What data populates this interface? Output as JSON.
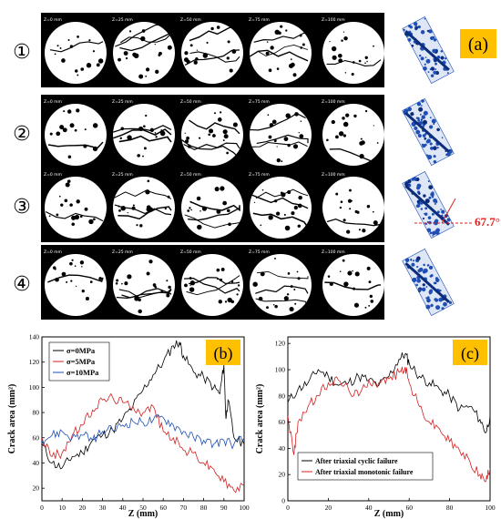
{
  "panel_a": {
    "badge": "(a)",
    "angle_label": "67.7°",
    "rows": [
      {
        "label": "①",
        "slices": [
          "Z=0 mm",
          "Z=25 mm",
          "Z=50 mm",
          "Z=75 mm",
          "Z=100 mm"
        ]
      },
      {
        "label": "②",
        "slices": [
          "Z=0 mm",
          "Z=25 mm",
          "Z=50 mm",
          "Z=75 mm",
          "Z=100 mm"
        ]
      },
      {
        "label": "③",
        "slices": [
          "Z=0 mm",
          "Z=25 mm",
          "Z=50 mm",
          "Z=75 mm",
          "Z=100 mm"
        ]
      },
      {
        "label": "④",
        "slices": [
          "Z=0 mm",
          "Z=25 mm",
          "Z=50 mm",
          "Z=75 mm",
          "Z=100 mm"
        ]
      }
    ]
  },
  "colors": {
    "badge": "#ffc000",
    "angle": "#e02020",
    "blue": "#1f4fb5",
    "black": "#000000",
    "red": "#d42020"
  },
  "chart_data": [
    {
      "type": "line",
      "badge": "(b)",
      "xlabel": "Z (mm)",
      "ylabel": "Crack area (mm²)",
      "xlim": [
        0,
        100
      ],
      "ylim": [
        10,
        140
      ],
      "xticks": [
        0,
        10,
        20,
        30,
        40,
        50,
        60,
        70,
        80,
        90,
        100
      ],
      "yticks": [
        20,
        40,
        60,
        80,
        100,
        120,
        140
      ],
      "legend_position": "top-left",
      "series": [
        {
          "name": "σ=0MPa",
          "color": "#000000",
          "x": [
            0,
            5,
            10,
            15,
            20,
            25,
            30,
            35,
            40,
            45,
            50,
            55,
            60,
            65,
            68,
            70,
            75,
            80,
            85,
            88,
            90,
            91,
            92,
            95,
            100
          ],
          "y": [
            55,
            40,
            36,
            45,
            48,
            58,
            62,
            66,
            75,
            85,
            98,
            110,
            120,
            133,
            136,
            125,
            112,
            108,
            100,
            95,
            118,
            75,
            90,
            60,
            55
          ]
        },
        {
          "name": "σ=5MPa",
          "color": "#d42020",
          "x": [
            0,
            5,
            10,
            15,
            20,
            25,
            30,
            35,
            40,
            45,
            50,
            55,
            60,
            65,
            70,
            75,
            80,
            85,
            90,
            95,
            100
          ],
          "y": [
            60,
            45,
            48,
            62,
            70,
            82,
            90,
            92,
            88,
            85,
            80,
            85,
            65,
            60,
            50,
            48,
            40,
            35,
            25,
            18,
            22
          ]
        },
        {
          "name": "σ=10MPa",
          "color": "#1f4fb5",
          "x": [
            0,
            5,
            10,
            15,
            20,
            25,
            30,
            35,
            40,
            45,
            50,
            55,
            60,
            65,
            70,
            75,
            80,
            85,
            90,
            95,
            100
          ],
          "y": [
            58,
            62,
            65,
            60,
            62,
            58,
            65,
            66,
            70,
            73,
            72,
            74,
            76,
            70,
            65,
            60,
            58,
            55,
            58,
            55,
            60
          ]
        }
      ]
    },
    {
      "type": "line",
      "badge": "(c)",
      "xlabel": "Z (mm)",
      "ylabel": "Crack area (mm²)",
      "xlim": [
        0,
        100
      ],
      "ylim": [
        0,
        125
      ],
      "xticks": [
        0,
        20,
        40,
        60,
        80,
        100
      ],
      "yticks": [
        0,
        20,
        40,
        60,
        80,
        100,
        120
      ],
      "legend_position": "bottom-left",
      "series": [
        {
          "name": "After triaxial cyclic failure",
          "color": "#000000",
          "x": [
            0,
            5,
            10,
            15,
            20,
            25,
            30,
            35,
            40,
            45,
            50,
            55,
            58,
            60,
            65,
            70,
            75,
            80,
            85,
            90,
            95,
            98,
            100
          ],
          "y": [
            75,
            85,
            90,
            100,
            95,
            88,
            90,
            95,
            92,
            88,
            95,
            108,
            112,
            105,
            95,
            90,
            85,
            80,
            70,
            72,
            62,
            52,
            65
          ]
        },
        {
          "name": "After triaxial monotonic failure",
          "color": "#d42020",
          "x": [
            0,
            3,
            5,
            10,
            15,
            20,
            25,
            30,
            35,
            40,
            45,
            50,
            55,
            58,
            60,
            65,
            70,
            75,
            80,
            85,
            90,
            95,
            98,
            100
          ],
          "y": [
            65,
            35,
            60,
            72,
            80,
            90,
            92,
            85,
            80,
            92,
            90,
            93,
            98,
            102,
            90,
            72,
            60,
            55,
            45,
            38,
            30,
            20,
            15,
            25
          ]
        }
      ]
    }
  ]
}
